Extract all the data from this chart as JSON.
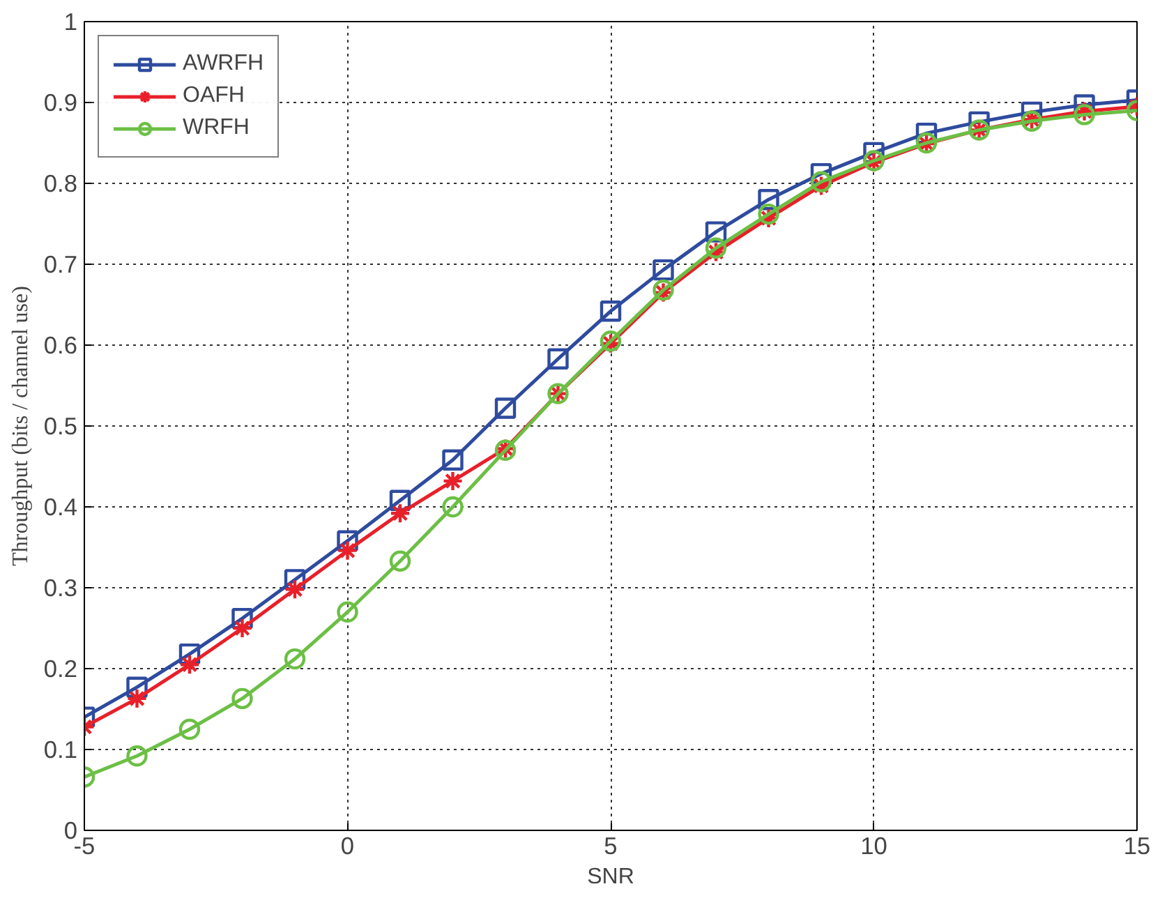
{
  "chart_data": {
    "type": "line",
    "xlabel": "SNR",
    "ylabel": "Throughput (bits / channel use)",
    "x": [
      -5,
      -4,
      -3,
      -2,
      -1,
      0,
      1,
      2,
      3,
      4,
      5,
      6,
      7,
      8,
      9,
      10,
      11,
      12,
      13,
      14,
      15
    ],
    "series": [
      {
        "name": "AWRFH",
        "color": "#2e4b9e",
        "marker": "square",
        "values": [
          0.14,
          0.177,
          0.218,
          0.262,
          0.31,
          0.358,
          0.408,
          0.458,
          0.522,
          0.583,
          0.642,
          0.693,
          0.74,
          0.78,
          0.812,
          0.838,
          0.862,
          0.876,
          0.888,
          0.897,
          0.903
        ]
      },
      {
        "name": "OAFH",
        "color": "#e8202a",
        "marker": "cross",
        "values": [
          0.128,
          0.163,
          0.205,
          0.25,
          0.298,
          0.346,
          0.392,
          0.432,
          0.472,
          0.54,
          0.602,
          0.665,
          0.715,
          0.757,
          0.797,
          0.826,
          0.849,
          0.866,
          0.879,
          0.889,
          0.895
        ]
      },
      {
        "name": "WRFH",
        "color": "#6cbf45",
        "marker": "circle",
        "values": [
          0.066,
          0.092,
          0.125,
          0.163,
          0.212,
          0.27,
          0.333,
          0.4,
          0.47,
          0.54,
          0.605,
          0.668,
          0.72,
          0.762,
          0.802,
          0.828,
          0.85,
          0.866,
          0.877,
          0.885,
          0.89
        ]
      }
    ],
    "xlim": [
      -5,
      15
    ],
    "ylim": [
      0,
      1
    ],
    "xticks": [
      -5,
      0,
      5,
      10,
      15
    ],
    "yticks": [
      0,
      0.1,
      0.2,
      0.3,
      0.4,
      0.5,
      0.6,
      0.7,
      0.8,
      0.9,
      1
    ],
    "grid": true,
    "legend": "top left",
    "line_style": "solid"
  }
}
